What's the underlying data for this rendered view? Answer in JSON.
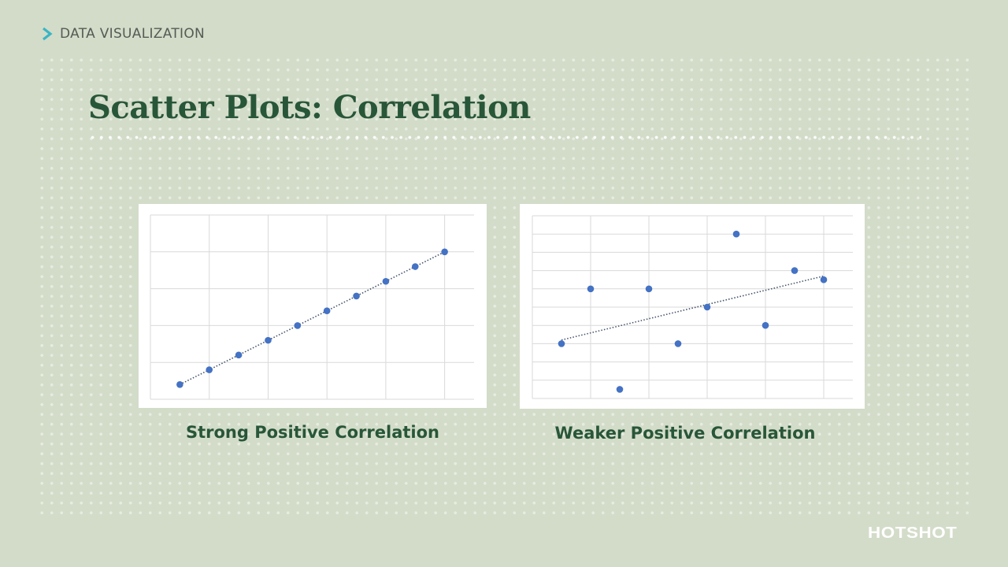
{
  "breadcrumb": {
    "icon": "chevron-right-icon",
    "label": "DATA VISUALIZATION",
    "icon_color": "#3bb5c4"
  },
  "title": "Scatter Plots: Correlation",
  "brand": {
    "logo": "HOTSHOT"
  },
  "colors": {
    "background": "#d3dcc9",
    "title": "#285638",
    "point": "#4472c4",
    "trendline": "#44546a",
    "grid": "#d9d9d9"
  },
  "charts": [
    {
      "caption": "Strong Positive Correlation"
    },
    {
      "caption": "Weaker Positive Correlation"
    }
  ],
  "chart_data": [
    {
      "type": "scatter",
      "title": "Strong Positive Correlation",
      "xlabel": "",
      "ylabel": "",
      "xlim": [
        0,
        11
      ],
      "ylim": [
        0,
        5
      ],
      "grid": true,
      "x": [
        0.5,
        1,
        1.5,
        2,
        2.5,
        3,
        3.5,
        4,
        4.5,
        5
      ],
      "y": [
        0.4,
        0.8,
        1.2,
        1.6,
        2.0,
        2.4,
        2.8,
        3.2,
        3.6,
        4.0
      ],
      "xlim_plot": [
        0,
        5.5
      ],
      "trendline": {
        "style": "dotted",
        "x": [
          0.5,
          5
        ],
        "y": [
          0.4,
          4.0
        ]
      },
      "legend": null
    },
    {
      "type": "scatter",
      "title": "Weaker Positive Correlation",
      "xlabel": "",
      "ylabel": "",
      "xlim": [
        0,
        5.5
      ],
      "ylim": [
        0,
        10
      ],
      "grid": true,
      "x": [
        0.5,
        1,
        1.5,
        2,
        2.5,
        3,
        3.5,
        4,
        4.5,
        5
      ],
      "y": [
        3,
        6,
        0.5,
        6,
        3,
        5,
        9,
        4,
        7,
        6.5
      ],
      "trendline": {
        "style": "dotted",
        "x": [
          0.5,
          5
        ],
        "y": [
          3.2,
          6.7
        ]
      },
      "legend": null
    }
  ]
}
